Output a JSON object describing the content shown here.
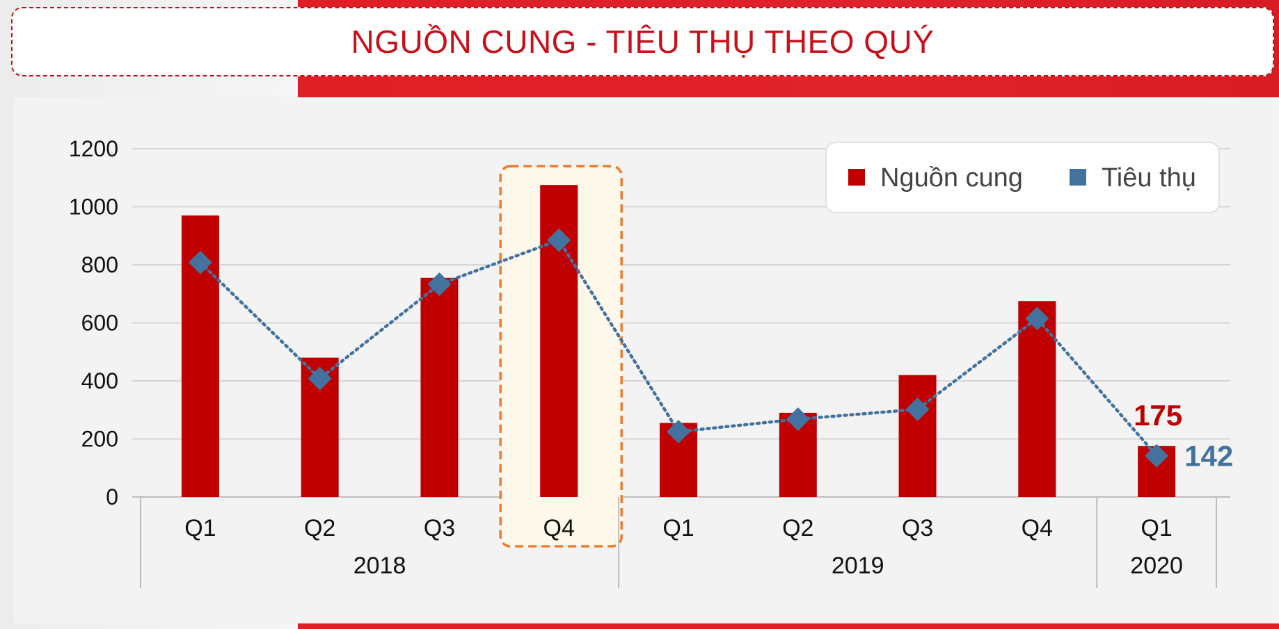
{
  "header": {
    "title": "NGUỒN CUNG - TIÊU THỤ THEO QUÝ"
  },
  "colors": {
    "supply": "#c00000",
    "consumption": "#43729e",
    "highlight_border": "#ed7d31",
    "highlight_fill": "#fdf8ea"
  },
  "chart_data": {
    "type": "bar",
    "title": "NGUỒN CUNG - TIÊU THỤ THEO QUÝ",
    "categories": [
      "Q1",
      "Q2",
      "Q3",
      "Q4",
      "Q1",
      "Q2",
      "Q3",
      "Q4",
      "Q1"
    ],
    "groups": [
      {
        "label": "2018",
        "start": 0,
        "end": 3
      },
      {
        "label": "2019",
        "start": 4,
        "end": 7
      },
      {
        "label": "2020",
        "start": 8,
        "end": 8
      }
    ],
    "series": [
      {
        "name": "Nguồn cung",
        "type": "bar",
        "values": [
          970,
          480,
          755,
          1075,
          255,
          290,
          420,
          675,
          175
        ]
      },
      {
        "name": "Tiêu thụ",
        "type": "line",
        "values": [
          808,
          408,
          733,
          885,
          225,
          268,
          302,
          615,
          142
        ]
      }
    ],
    "yticks": [
      "0",
      "200",
      "400",
      "600",
      "800",
      "1000",
      "1200"
    ],
    "ylim": [
      0,
      1200
    ],
    "grid": true,
    "legend": "top-right",
    "highlight_category_index": 3,
    "data_labels": [
      {
        "series": 0,
        "index": 8,
        "text": "175"
      },
      {
        "series": 1,
        "index": 8,
        "text": "142"
      }
    ]
  }
}
